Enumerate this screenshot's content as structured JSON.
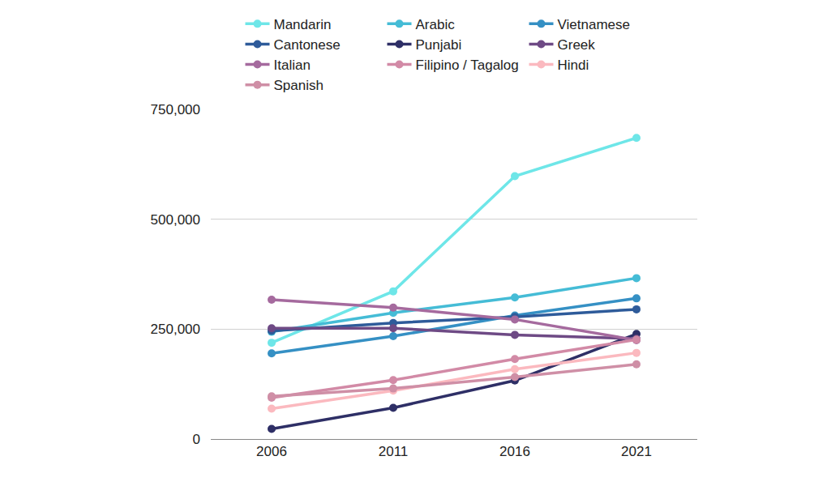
{
  "chart_data": {
    "type": "line",
    "categories": [
      "2006",
      "2011",
      "2016",
      "2021"
    ],
    "series": [
      {
        "name": "Mandarin",
        "color": "#6ee6e8",
        "values": [
          219000,
          336000,
          598000,
          685000
        ]
      },
      {
        "name": "Arabic",
        "color": "#45bcd6",
        "values": [
          244000,
          287000,
          322000,
          366000
        ]
      },
      {
        "name": "Vietnamese",
        "color": "#3590c4",
        "values": [
          195000,
          234000,
          281000,
          320000
        ]
      },
      {
        "name": "Cantonese",
        "color": "#2e5b9a",
        "values": [
          246000,
          264000,
          278000,
          295000
        ]
      },
      {
        "name": "Punjabi",
        "color": "#2e2f66",
        "values": [
          23000,
          71000,
          133000,
          239000
        ]
      },
      {
        "name": "Greek",
        "color": "#6e4a85",
        "values": [
          252000,
          252000,
          237000,
          228000
        ]
      },
      {
        "name": "Italian",
        "color": "#a56a9e",
        "values": [
          317000,
          299000,
          272000,
          225000
        ]
      },
      {
        "name": "Filipino / Tagalog",
        "color": "#d28aa6",
        "values": [
          94000,
          134000,
          182000,
          226000
        ]
      },
      {
        "name": "Hindi",
        "color": "#fbb9bf",
        "values": [
          69000,
          110000,
          159000,
          196000
        ]
      },
      {
        "name": "Spanish",
        "color": "#cf8fa6",
        "values": [
          97000,
          115000,
          141000,
          170000
        ]
      }
    ],
    "ylim": [
      0,
      750000
    ],
    "yticks": [
      0,
      {
        "value": 250000,
        "label": "250,000"
      },
      {
        "value": 500000,
        "label": "500,000"
      },
      {
        "value": 750000,
        "label": "750,000"
      }
    ],
    "grid": true,
    "legend": "top",
    "marker": "circle"
  }
}
